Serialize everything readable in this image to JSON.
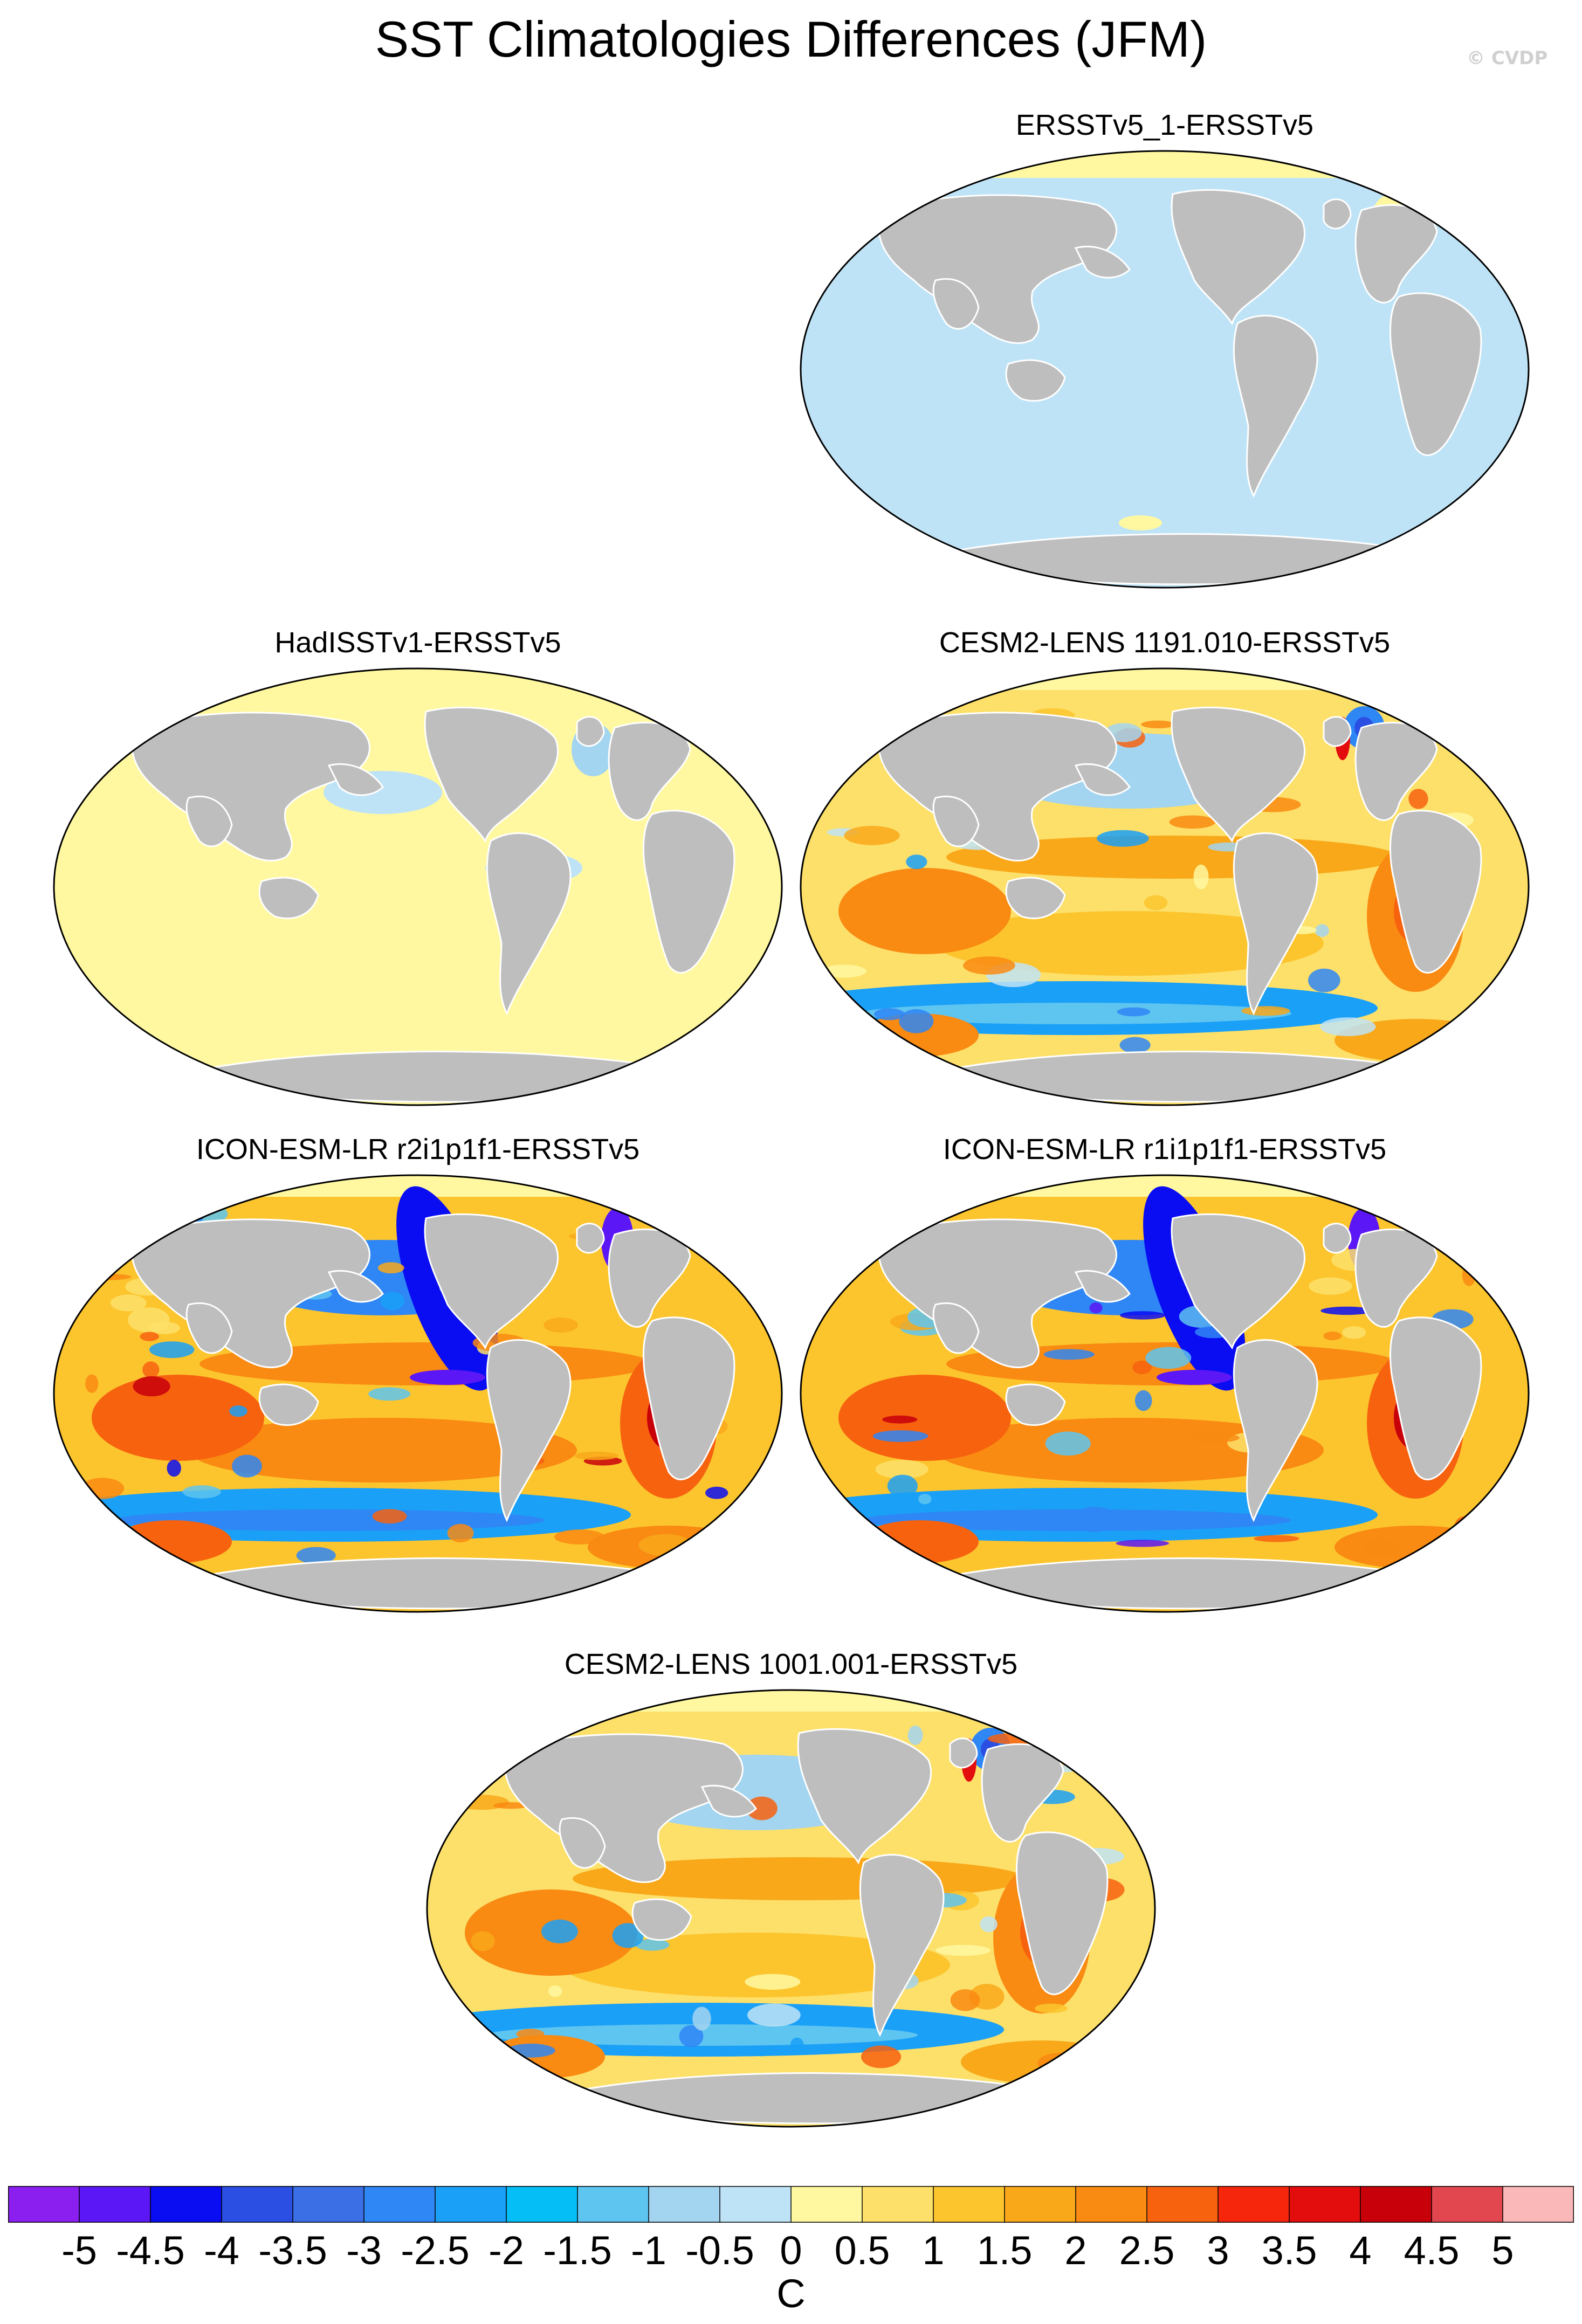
{
  "title": "SST Climatologies Differences (JFM)",
  "credit": "© CVDP",
  "panels": [
    {
      "label": "ERSSTv5_1-ERSSTv5",
      "pattern": "uniform-zero"
    },
    {
      "label": "HadISSTv1-ERSSTv5",
      "pattern": "small-positive"
    },
    {
      "label": "CESM2-LENS 1191.010-ERSSTv5",
      "pattern": "model-cesm"
    },
    {
      "label": "ICON-ESM-LR r2i1p1f1-ERSSTv5",
      "pattern": "model-icon"
    },
    {
      "label": "ICON-ESM-LR r1i1p1f1-ERSSTv5",
      "pattern": "model-icon"
    },
    {
      "label": "CESM2-LENS 1001.001-ERSSTv5",
      "pattern": "model-cesm"
    }
  ],
  "colorbar": {
    "ticks": [
      "-5",
      "-4.5",
      "-4",
      "-3.5",
      "-3",
      "-2.5",
      "-2",
      "-1.5",
      "-1",
      "-0.5",
      "0",
      "0.5",
      "1",
      "1.5",
      "2",
      "2.5",
      "3",
      "3.5",
      "4",
      "4.5",
      "5"
    ],
    "colors": [
      "#8a1ff0",
      "#5b17f5",
      "#0a0cf2",
      "#2b4fe2",
      "#3a6fe6",
      "#2f86f5",
      "#1aa0f7",
      "#05bef5",
      "#5ec4f0",
      "#a3d4f0",
      "#bfe3f6",
      "#fff8a0",
      "#fde06a",
      "#fcc52e",
      "#f9a81a",
      "#f98a12",
      "#f7620f",
      "#f5260c",
      "#e40d0d",
      "#c8000a",
      "#e2474f",
      "#fbb8b8"
    ],
    "unit": "C"
  }
}
